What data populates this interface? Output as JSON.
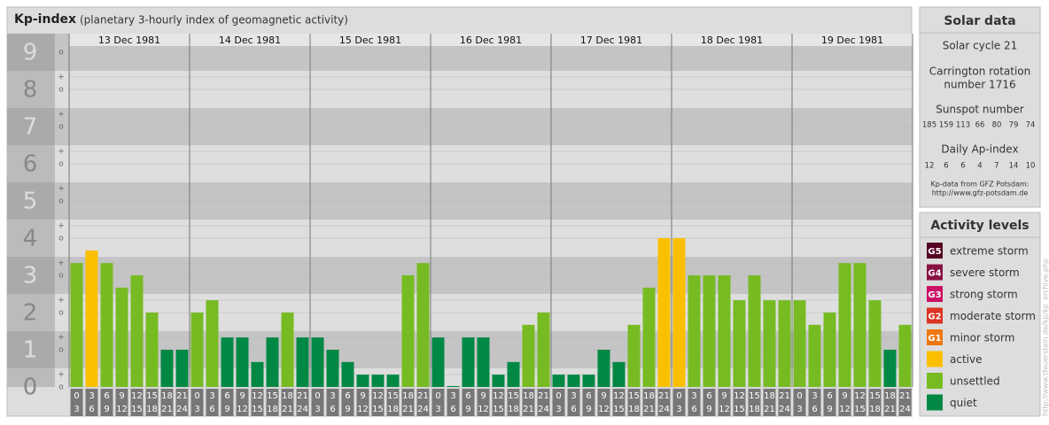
{
  "chart_data": {
    "type": "bar",
    "title": "Kp-index",
    "subtitle": "(planetary 3-hourly index of geomagnetic activity)",
    "ylim": [
      0,
      9.5
    ],
    "yticks": [
      0,
      1,
      2,
      3,
      4,
      5,
      6,
      7,
      8,
      9
    ],
    "minor_labels": [
      "o",
      "+",
      "-"
    ],
    "grid": true,
    "hours": [
      [
        "0",
        "3"
      ],
      [
        "3",
        "6"
      ],
      [
        "6",
        "9"
      ],
      [
        "9",
        "12"
      ],
      [
        "12",
        "15"
      ],
      [
        "15",
        "18"
      ],
      [
        "18",
        "21"
      ],
      [
        "21",
        "24"
      ]
    ],
    "series": [
      {
        "name": "13 Dec 1981",
        "values": [
          3.33,
          3.67,
          3.33,
          2.67,
          3,
          2,
          1,
          1
        ],
        "colors": [
          "#77bb22",
          "#fac000",
          "#77bb22",
          "#77bb22",
          "#77bb22",
          "#77bb22",
          "#008844",
          "#008844"
        ]
      },
      {
        "name": "14 Dec 1981",
        "values": [
          2,
          2.33,
          1.33,
          1.33,
          0.67,
          1.33,
          2,
          1.33
        ],
        "colors": [
          "#77bb22",
          "#77bb22",
          "#008844",
          "#008844",
          "#008844",
          "#008844",
          "#77bb22",
          "#008844"
        ]
      },
      {
        "name": "15 Dec 1981",
        "values": [
          1.33,
          1,
          0.67,
          0.33,
          0.33,
          0.33,
          3,
          3.33
        ],
        "colors": [
          "#008844",
          "#008844",
          "#008844",
          "#008844",
          "#008844",
          "#008844",
          "#77bb22",
          "#77bb22"
        ]
      },
      {
        "name": "16 Dec 1981",
        "values": [
          1.33,
          0,
          1.33,
          1.33,
          0.33,
          0.67,
          1.67,
          2
        ],
        "colors": [
          "#008844",
          "#008844",
          "#008844",
          "#008844",
          "#008844",
          "#008844",
          "#77bb22",
          "#77bb22"
        ]
      },
      {
        "name": "17 Dec 1981",
        "values": [
          0.33,
          0.33,
          0.33,
          1,
          0.67,
          1.67,
          2.67,
          4
        ],
        "colors": [
          "#008844",
          "#008844",
          "#008844",
          "#008844",
          "#008844",
          "#77bb22",
          "#77bb22",
          "#fac000"
        ]
      },
      {
        "name": "18 Dec 1981",
        "values": [
          4,
          3,
          3,
          3,
          2.33,
          3,
          2.33,
          2.33
        ],
        "colors": [
          "#fac000",
          "#77bb22",
          "#77bb22",
          "#77bb22",
          "#77bb22",
          "#77bb22",
          "#77bb22",
          "#77bb22"
        ]
      },
      {
        "name": "19 Dec 1981",
        "values": [
          2.33,
          1.67,
          2,
          3.33,
          3.33,
          2.33,
          1,
          1.67
        ],
        "colors": [
          "#77bb22",
          "#77bb22",
          "#77bb22",
          "#77bb22",
          "#77bb22",
          "#77bb22",
          "#008844",
          "#77bb22"
        ]
      }
    ]
  },
  "solar_data": {
    "title": "Solar data",
    "cycle": "Solar cycle 21",
    "carrington": [
      "Carrington rotation",
      "number 1716"
    ],
    "sunspot_label": "Sunspot number",
    "sunspots": [
      185,
      159,
      113,
      66,
      80,
      79,
      74
    ],
    "ap_label": "Daily Ap-index",
    "ap": [
      12,
      6,
      6,
      4,
      7,
      14,
      10
    ],
    "source": "Kp-data from GFZ Potsdam:",
    "url": "http://www.gfz-potsdam.de"
  },
  "activity_levels": {
    "title": "Activity levels",
    "items": [
      {
        "code": "G5",
        "label": "extreme storm",
        "color": "#550022"
      },
      {
        "code": "G4",
        "label": "severe storm",
        "color": "#881144"
      },
      {
        "code": "G3",
        "label": "strong storm",
        "color": "#cc1166"
      },
      {
        "code": "G2",
        "label": "moderate storm",
        "color": "#dd3322"
      },
      {
        "code": "G1",
        "label": "minor storm",
        "color": "#ee7711"
      },
      {
        "code": null,
        "label": "active",
        "color": "#fac000"
      },
      {
        "code": null,
        "label": "unsettled",
        "color": "#77bb22"
      },
      {
        "code": null,
        "label": "quiet",
        "color": "#008844"
      }
    ]
  },
  "credit": "http://www.tfeuerstein.de/kp/kp_archive.php"
}
